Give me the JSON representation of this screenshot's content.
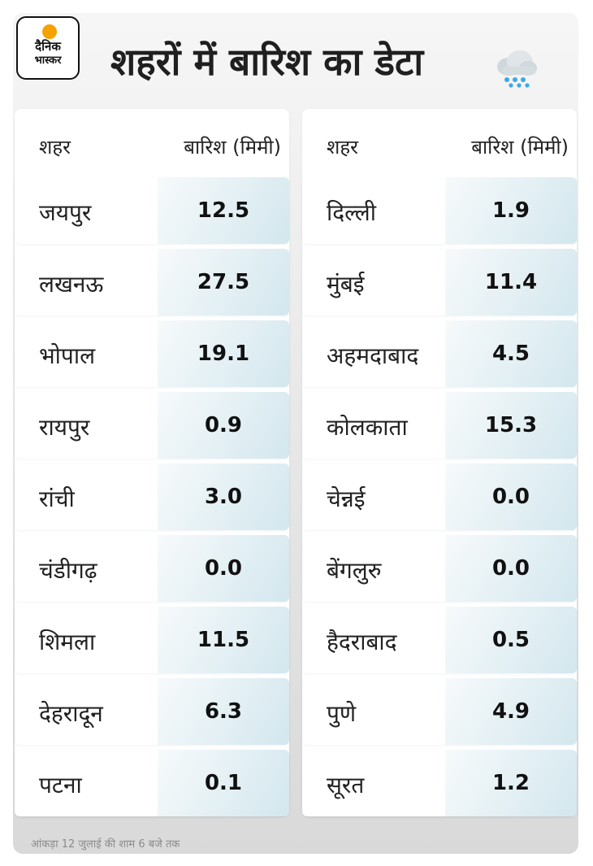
{
  "logo": {
    "line1": "दैनिक",
    "line2": "भास्कर"
  },
  "title": "शहरों में बारिश का डेटा",
  "icon": "rain-cloud-icon",
  "columns": {
    "city": "शहर",
    "rain": "बारिश (मिमी)"
  },
  "left_rows": [
    {
      "city": "जयपुर",
      "value": "12.5"
    },
    {
      "city": "लखनऊ",
      "value": "27.5"
    },
    {
      "city": "भोपाल",
      "value": "19.1"
    },
    {
      "city": "रायपुर",
      "value": "0.9"
    },
    {
      "city": "रांची",
      "value": "3.0"
    },
    {
      "city": "चंडीगढ़",
      "value": "0.0"
    },
    {
      "city": "शिमला",
      "value": "11.5"
    },
    {
      "city": "देहरादून",
      "value": "6.3"
    },
    {
      "city": "पटना",
      "value": "0.1"
    }
  ],
  "right_rows": [
    {
      "city": "दिल्ली",
      "value": "1.9"
    },
    {
      "city": "मुंबई",
      "value": "11.4"
    },
    {
      "city": "अहमदाबाद",
      "value": "4.5"
    },
    {
      "city": "कोलकाता",
      "value": "15.3"
    },
    {
      "city": "चेन्नई",
      "value": "0.0"
    },
    {
      "city": "बेंगलुरु",
      "value": "0.0"
    },
    {
      "city": "हैदराबाद",
      "value": "0.5"
    },
    {
      "city": "पुणे",
      "value": "4.9"
    },
    {
      "city": "सूरत",
      "value": "1.2"
    }
  ],
  "footnote": "आंकड़ा 12 जुलाई की शाम 6 बजे तक"
}
